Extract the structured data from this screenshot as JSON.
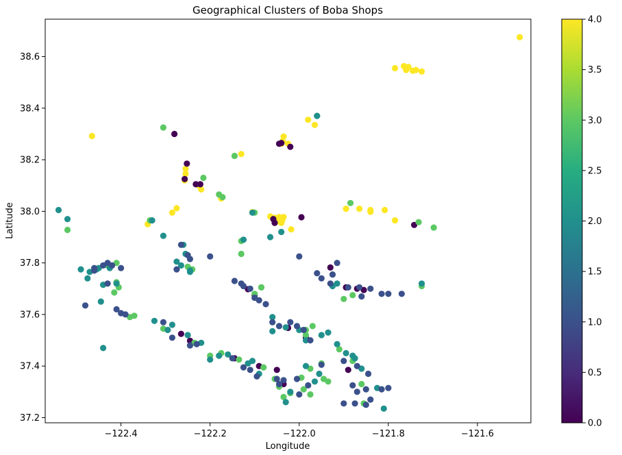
{
  "chart_data": {
    "type": "scatter",
    "title": "Geographical Clusters of Boba Shops",
    "xlabel": "Longitude",
    "ylabel": "Latitude",
    "xlim": [
      -122.57,
      -121.48
    ],
    "ylim": [
      37.18,
      38.745
    ],
    "xticks": [
      -122.4,
      -122.2,
      -122.0,
      -121.8,
      -121.6
    ],
    "xtick_labels": [
      "−122.4",
      "−122.2",
      "−122.0",
      "−121.8",
      "−121.6"
    ],
    "yticks": [
      37.2,
      37.4,
      37.6,
      37.8,
      38.0,
      38.2,
      38.4,
      38.6
    ],
    "ytick_labels": [
      "37.2",
      "37.4",
      "37.6",
      "37.8",
      "38.0",
      "38.2",
      "38.4",
      "38.6"
    ],
    "colorbar": {
      "colormap": "viridis",
      "range": [
        0,
        4
      ],
      "ticks": [
        0,
        0.5,
        1,
        1.5,
        2,
        2.5,
        3,
        3.5,
        4
      ],
      "tick_labels": [
        "0.0",
        "0.5",
        "1.0",
        "1.5",
        "2.0",
        "2.5",
        "3.0",
        "3.5",
        "4.0"
      ]
    },
    "grid": false,
    "points": [
      [
        -121.505,
        38.675,
        4
      ],
      [
        -121.785,
        38.555,
        4
      ],
      [
        -121.765,
        38.563,
        4
      ],
      [
        -121.755,
        38.56,
        4
      ],
      [
        -121.76,
        38.548,
        4
      ],
      [
        -121.745,
        38.545,
        4
      ],
      [
        -121.738,
        38.548,
        4
      ],
      [
        -121.725,
        38.542,
        4
      ],
      [
        -122.465,
        38.292,
        4
      ],
      [
        -121.98,
        38.355,
        4
      ],
      [
        -121.965,
        38.335,
        4
      ],
      [
        -122.035,
        38.29,
        4
      ],
      [
        -122.037,
        38.272,
        4
      ],
      [
        -122.04,
        38.262,
        4
      ],
      [
        -122.025,
        38.262,
        4
      ],
      [
        -122.13,
        38.222,
        4
      ],
      [
        -122.255,
        38.165,
        4
      ],
      [
        -122.255,
        38.145,
        4
      ],
      [
        -122.257,
        38.12,
        4
      ],
      [
        -122.225,
        38.1,
        4
      ],
      [
        -122.22,
        38.085,
        4
      ],
      [
        -122.175,
        38.05,
        4
      ],
      [
        -122.275,
        38.012,
        4
      ],
      [
        -122.285,
        37.995,
        4
      ],
      [
        -122.34,
        37.95,
        4
      ],
      [
        -122.105,
        37.997,
        4
      ],
      [
        -122.065,
        37.98,
        4
      ],
      [
        -122.055,
        37.975,
        4
      ],
      [
        -122.045,
        37.978,
        4
      ],
      [
        -122.035,
        37.978,
        4
      ],
      [
        -122.038,
        37.965,
        4
      ],
      [
        -122.05,
        37.96,
        4
      ],
      [
        -122.04,
        37.955,
        4
      ],
      [
        -122.018,
        37.93,
        4
      ],
      [
        -121.895,
        38.01,
        4
      ],
      [
        -121.865,
        38.01,
        4
      ],
      [
        -121.84,
        38.005,
        4
      ],
      [
        -121.84,
        37.998,
        4
      ],
      [
        -121.808,
        38.005,
        4
      ],
      [
        -121.785,
        37.965,
        4
      ],
      [
        -122.28,
        38.3,
        0
      ],
      [
        -122.252,
        38.185,
        0
      ],
      [
        -122.257,
        38.125,
        0
      ],
      [
        -122.232,
        38.105,
        0
      ],
      [
        -122.222,
        38.105,
        0
      ],
      [
        -122.045,
        38.262,
        0
      ],
      [
        -122.04,
        38.265,
        0
      ],
      [
        -122.02,
        38.25,
        0
      ],
      [
        -122.058,
        37.97,
        0
      ],
      [
        -122.055,
        37.955,
        0
      ],
      [
        -121.995,
        37.977,
        0
      ],
      [
        -121.742,
        37.947,
        0
      ],
      [
        -122.115,
        37.698,
        0
      ],
      [
        -122.1,
        37.675,
        0
      ],
      [
        -122.265,
        37.525,
        0
      ],
      [
        -122.245,
        37.498,
        0
      ],
      [
        -122.145,
        37.43,
        0
      ],
      [
        -122.09,
        37.4,
        0
      ],
      [
        -122.05,
        37.385,
        0
      ],
      [
        -122.035,
        37.33,
        0
      ],
      [
        -121.985,
        37.51,
        0
      ],
      [
        -122.025,
        37.548,
        0
      ],
      [
        -121.895,
        37.705,
        0
      ],
      [
        -121.87,
        37.7,
        0
      ],
      [
        -121.855,
        37.695,
        0
      ],
      [
        -121.89,
        37.385,
        0
      ],
      [
        -121.93,
        37.782,
        0
      ],
      [
        -122.305,
        38.325,
        3
      ],
      [
        -121.96,
        38.37,
        3
      ],
      [
        -122.215,
        38.13,
        3
      ],
      [
        -122.145,
        38.215,
        3
      ],
      [
        -122.18,
        38.065,
        3
      ],
      [
        -122.172,
        38.055,
        3
      ],
      [
        -122.335,
        37.965,
        3
      ],
      [
        -122.1,
        37.995,
        3
      ],
      [
        -121.885,
        38.032,
        3
      ],
      [
        -121.732,
        37.958,
        3
      ],
      [
        -121.698,
        37.937,
        3
      ],
      [
        -122.52,
        37.928,
        3
      ],
      [
        -122.13,
        37.885,
        3
      ],
      [
        -122.13,
        37.835,
        3
      ],
      [
        -122.43,
        37.79,
        3
      ],
      [
        -122.41,
        37.8,
        3
      ],
      [
        -122.41,
        37.725,
        3
      ],
      [
        -122.405,
        37.705,
        3
      ],
      [
        -122.415,
        37.685,
        3
      ],
      [
        -122.38,
        37.59,
        3
      ],
      [
        -122.24,
        37.775,
        3
      ],
      [
        -122.25,
        37.785,
        3
      ],
      [
        -122.085,
        37.705,
        3
      ],
      [
        -122.1,
        37.68,
        3
      ],
      [
        -121.88,
        37.675,
        3
      ],
      [
        -121.9,
        37.66,
        3
      ],
      [
        -121.725,
        37.71,
        3
      ],
      [
        -122.37,
        37.595,
        3
      ],
      [
        -122.305,
        37.545,
        3
      ],
      [
        -122.235,
        37.49,
        3
      ],
      [
        -122.2,
        37.44,
        3
      ],
      [
        -122.175,
        37.45,
        3
      ],
      [
        -122.135,
        37.425,
        3
      ],
      [
        -122.08,
        37.395,
        3
      ],
      [
        -122.055,
        37.35,
        3
      ],
      [
        -122.045,
        37.32,
        3
      ],
      [
        -122.035,
        37.28,
        3
      ],
      [
        -122.02,
        37.295,
        3
      ],
      [
        -121.995,
        37.355,
        3
      ],
      [
        -121.975,
        37.39,
        3
      ],
      [
        -121.99,
        37.31,
        3
      ],
      [
        -121.975,
        37.29,
        3
      ],
      [
        -121.985,
        37.54,
        3
      ],
      [
        -121.985,
        37.52,
        3
      ],
      [
        -121.97,
        37.555,
        3
      ],
      [
        -121.95,
        37.41,
        3
      ],
      [
        -121.945,
        37.35,
        3
      ],
      [
        -121.935,
        37.34,
        3
      ],
      [
        -121.91,
        37.465,
        3
      ],
      [
        -121.88,
        37.42,
        3
      ],
      [
        -121.86,
        37.33,
        3
      ],
      [
        -121.855,
        37.255,
        3
      ],
      [
        -122.085,
        37.705,
        3
      ],
      [
        -122.54,
        38.005,
        2
      ],
      [
        -122.52,
        37.97,
        2
      ],
      [
        -122.33,
        37.965,
        2
      ],
      [
        -122.305,
        37.905,
        2
      ],
      [
        -122.105,
        37.995,
        2
      ],
      [
        -122.125,
        37.89,
        2
      ],
      [
        -122.065,
        37.9,
        2
      ],
      [
        -122.04,
        37.92,
        2
      ],
      [
        -121.96,
        38.37,
        2
      ],
      [
        -121.725,
        37.72,
        2
      ],
      [
        -122.49,
        37.775,
        2
      ],
      [
        -122.475,
        37.74,
        2
      ],
      [
        -122.47,
        37.765,
        2
      ],
      [
        -122.455,
        37.775,
        2
      ],
      [
        -122.45,
        37.78,
        2
      ],
      [
        -122.44,
        37.715,
        2
      ],
      [
        -122.445,
        37.65,
        2
      ],
      [
        -122.44,
        37.47,
        2
      ],
      [
        -122.425,
        37.78,
        2
      ],
      [
        -122.41,
        37.72,
        2
      ],
      [
        -122.26,
        37.87,
        2
      ],
      [
        -122.255,
        37.835,
        2
      ],
      [
        -122.265,
        37.79,
        2
      ],
      [
        -122.245,
        37.77,
        2
      ],
      [
        -122.245,
        37.765,
        2
      ],
      [
        -122.275,
        37.805,
        2
      ],
      [
        -122.325,
        37.575,
        2
      ],
      [
        -122.295,
        37.54,
        2
      ],
      [
        -122.285,
        37.56,
        2
      ],
      [
        -122.25,
        37.52,
        2
      ],
      [
        -122.22,
        37.49,
        2
      ],
      [
        -122.2,
        37.425,
        2
      ],
      [
        -122.18,
        37.44,
        2
      ],
      [
        -122.16,
        37.445,
        2
      ],
      [
        -122.115,
        37.41,
        2
      ],
      [
        -122.105,
        37.42,
        2
      ],
      [
        -122.09,
        37.37,
        2
      ],
      [
        -122.06,
        37.535,
        2
      ],
      [
        -122.06,
        37.59,
        2
      ],
      [
        -122.03,
        37.55,
        2
      ],
      [
        -122.0,
        37.54,
        2
      ],
      [
        -121.985,
        37.5,
        2
      ],
      [
        -121.95,
        37.52,
        2
      ],
      [
        -121.935,
        37.53,
        2
      ],
      [
        -121.925,
        37.71,
        2
      ],
      [
        -121.915,
        37.72,
        2
      ],
      [
        -121.915,
        37.485,
        2
      ],
      [
        -121.895,
        37.45,
        2
      ],
      [
        -121.88,
        37.44,
        2
      ],
      [
        -121.875,
        37.43,
        2
      ],
      [
        -121.86,
        37.39,
        2
      ],
      [
        -121.825,
        37.315,
        2
      ],
      [
        -121.81,
        37.235,
        2
      ],
      [
        -121.985,
        37.4,
        2
      ],
      [
        -121.955,
        37.37,
        2
      ],
      [
        -122.02,
        37.3,
        2
      ],
      [
        -122.03,
        37.26,
        2
      ],
      [
        -121.965,
        37.34,
        2
      ],
      [
        -122.48,
        37.635,
        1
      ],
      [
        -122.46,
        37.77,
        1
      ],
      [
        -122.46,
        37.78,
        1
      ],
      [
        -122.44,
        37.79,
        1
      ],
      [
        -122.43,
        37.8,
        1
      ],
      [
        -122.42,
        37.79,
        1
      ],
      [
        -122.4,
        37.78,
        1
      ],
      [
        -122.43,
        37.72,
        1
      ],
      [
        -122.41,
        37.62,
        1
      ],
      [
        -122.4,
        37.605,
        1
      ],
      [
        -122.39,
        37.6,
        1
      ],
      [
        -122.265,
        37.87,
        1
      ],
      [
        -122.245,
        37.815,
        1
      ],
      [
        -122.25,
        37.83,
        1
      ],
      [
        -122.275,
        37.775,
        1
      ],
      [
        -122.2,
        37.825,
        1
      ],
      [
        -122.145,
        37.73,
        1
      ],
      [
        -122.13,
        37.72,
        1
      ],
      [
        -122.125,
        37.71,
        1
      ],
      [
        -122.11,
        37.7,
        1
      ],
      [
        -122.1,
        37.665,
        1
      ],
      [
        -122.09,
        37.655,
        1
      ],
      [
        -122.075,
        37.64,
        1
      ],
      [
        -122.06,
        37.57,
        1
      ],
      [
        -122.045,
        37.555,
        1
      ],
      [
        -122.02,
        37.57,
        1
      ],
      [
        -122.005,
        37.555,
        1
      ],
      [
        -121.99,
        37.54,
        1
      ],
      [
        -121.975,
        37.5,
        1
      ],
      [
        -122.305,
        37.57,
        1
      ],
      [
        -122.285,
        37.51,
        1
      ],
      [
        -122.245,
        37.48,
        1
      ],
      [
        -122.23,
        37.485,
        1
      ],
      [
        -122.15,
        37.43,
        1
      ],
      [
        -122.125,
        37.395,
        1
      ],
      [
        -122.11,
        37.385,
        1
      ],
      [
        -122.095,
        37.36,
        1
      ],
      [
        -122.05,
        37.35,
        1
      ],
      [
        -122.045,
        37.33,
        1
      ],
      [
        -122.035,
        37.345,
        1
      ],
      [
        -122.005,
        37.35,
        1
      ],
      [
        -122.0,
        37.29,
        1
      ],
      [
        -121.98,
        37.325,
        1
      ],
      [
        -121.95,
        37.405,
        1
      ],
      [
        -121.925,
        37.755,
        1
      ],
      [
        -121.915,
        37.8,
        1
      ],
      [
        -121.93,
        37.72,
        1
      ],
      [
        -121.89,
        37.705,
        1
      ],
      [
        -121.865,
        37.705,
        1
      ],
      [
        -121.86,
        37.67,
        1
      ],
      [
        -121.84,
        37.7,
        1
      ],
      [
        -121.815,
        37.68,
        1
      ],
      [
        -121.8,
        37.68,
        1
      ],
      [
        -121.77,
        37.68,
        1
      ],
      [
        -122.0,
        37.825,
        1
      ],
      [
        -121.96,
        37.76,
        1
      ],
      [
        -121.95,
        37.74,
        1
      ],
      [
        -121.9,
        37.42,
        1
      ],
      [
        -121.87,
        37.4,
        1
      ],
      [
        -121.845,
        37.37,
        1
      ],
      [
        -121.88,
        37.325,
        1
      ],
      [
        -121.87,
        37.3,
        1
      ],
      [
        -121.85,
        37.31,
        1
      ],
      [
        -121.84,
        37.27,
        1
      ],
      [
        -121.815,
        37.31,
        1
      ],
      [
        -121.8,
        37.315,
        1
      ],
      [
        -121.9,
        37.255,
        1
      ],
      [
        -121.875,
        37.255,
        1
      ],
      [
        -121.85,
        37.25,
        1
      ]
    ]
  }
}
